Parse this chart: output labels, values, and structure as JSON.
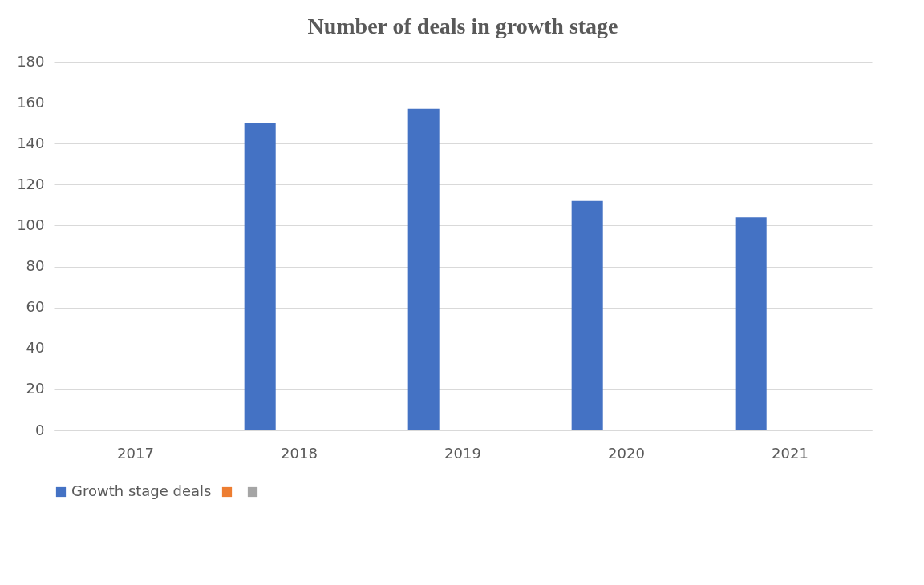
{
  "chart_data": {
    "type": "bar",
    "title": "Number of deals in growth stage",
    "categories": [
      "2017",
      "2018",
      "2019",
      "2020",
      "2021"
    ],
    "series": [
      {
        "name": "Growth stage deals",
        "color": "#4472c4",
        "values": [
          null,
          150,
          157,
          112,
          104
        ]
      },
      {
        "color": "#ed7d31",
        "values": [
          null,
          null,
          null,
          null,
          null
        ]
      },
      {
        "color": "#a5a5a5",
        "values": [
          null,
          null,
          null,
          null,
          null
        ]
      }
    ],
    "ylim": [
      0,
      180
    ],
    "yticks": [
      0,
      20,
      40,
      60,
      80,
      100,
      120,
      140,
      160,
      180
    ],
    "grid": "y",
    "legend": "bottom"
  }
}
